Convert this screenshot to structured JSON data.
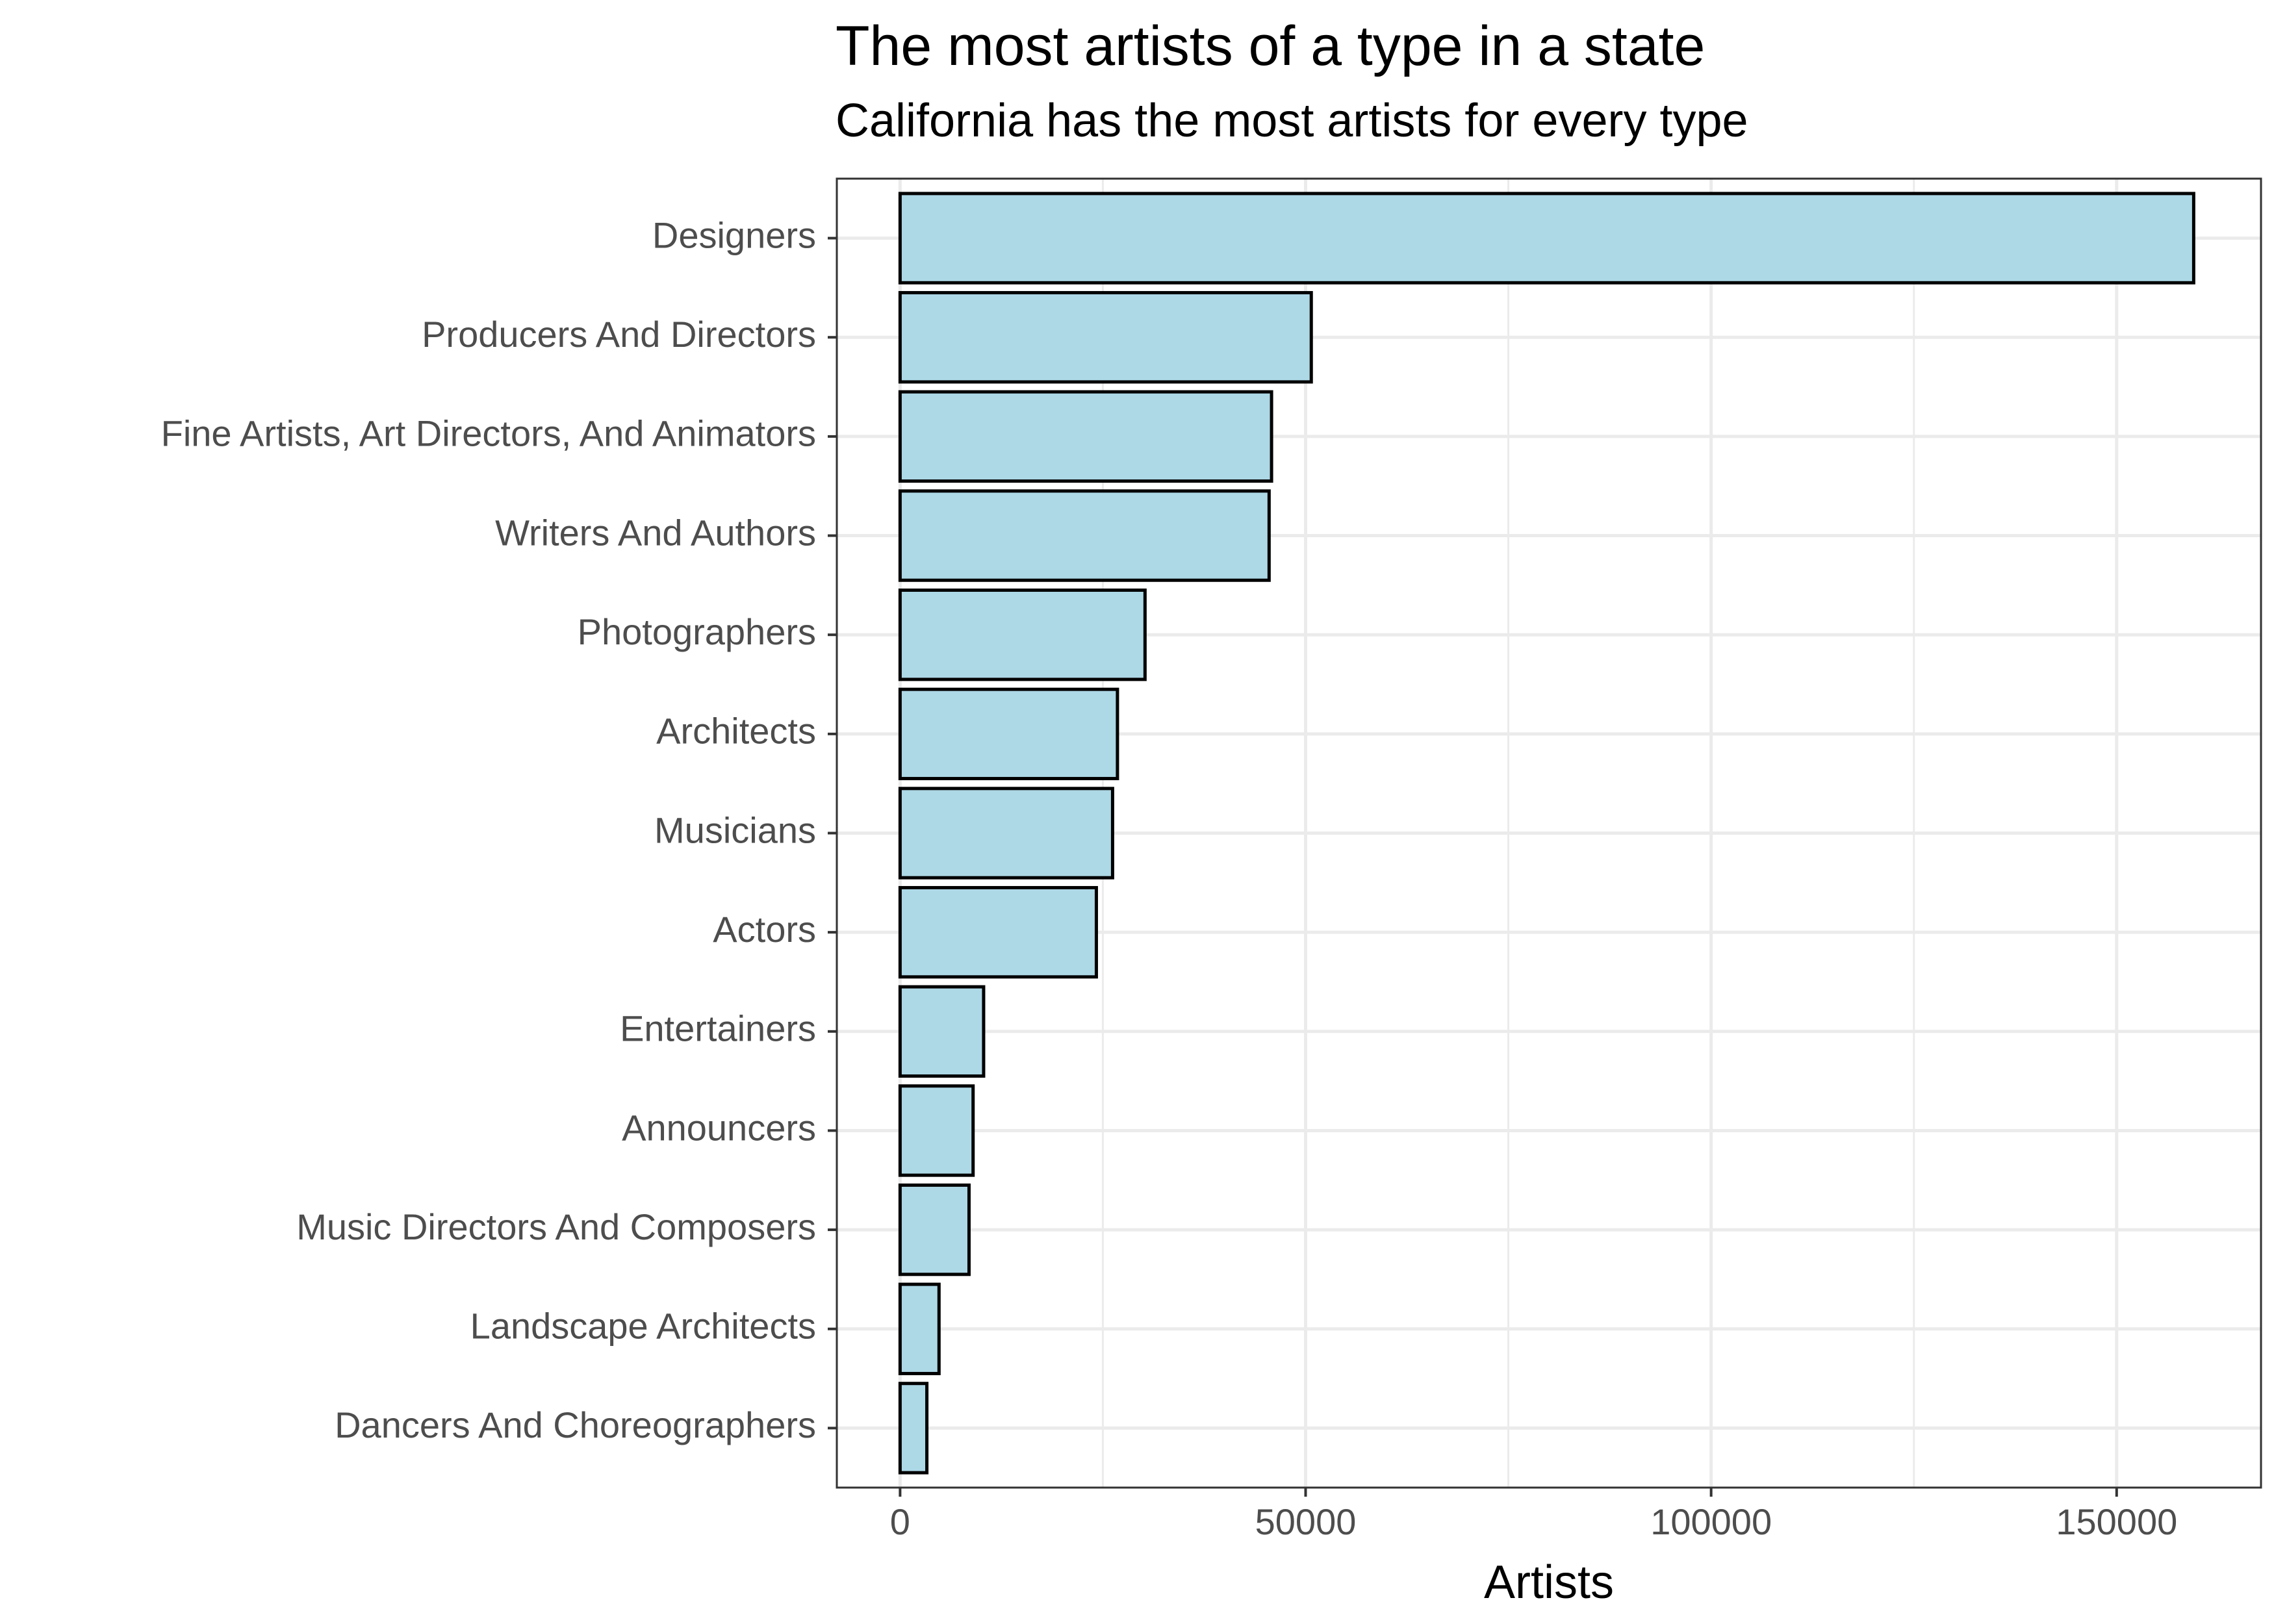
{
  "chart_data": {
    "type": "bar",
    "orientation": "horizontal",
    "title": "The most artists of a type in a state",
    "subtitle": "California has the most artists for every type",
    "xlabel": "Artists",
    "ylabel": "",
    "xlim": [
      -7800,
      167800
    ],
    "xticks": [
      0,
      50000,
      100000,
      150000
    ],
    "xtick_labels": [
      "0",
      "50000",
      "100000",
      "150000"
    ],
    "grid": true,
    "colors": {
      "bar_fill": "#add8e6",
      "bar_stroke": "#000000",
      "grid": "#ebebeb"
    },
    "categories": [
      "Designers",
      "Producers And Directors",
      "Fine Artists, Art Directors, And Animators",
      "Writers And Authors",
      "Photographers",
      "Architects",
      "Musicians",
      "Actors",
      "Entertainers",
      "Announcers",
      "Music Directors And Composers",
      "Landscape Architects",
      "Dancers And Choreographers"
    ],
    "values": [
      159500,
      50700,
      45800,
      45500,
      30200,
      26800,
      26200,
      24200,
      10300,
      9000,
      8500,
      4800,
      3300
    ]
  }
}
